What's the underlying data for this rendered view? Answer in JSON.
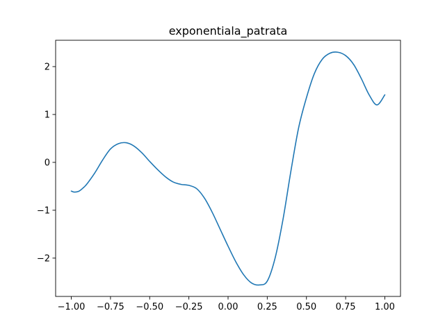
{
  "chart_data": {
    "type": "line",
    "title": "exponentiala_patrata",
    "xlabel": "",
    "ylabel": "",
    "xlim": [
      -1.1,
      1.1
    ],
    "ylim": [
      -2.8,
      2.55
    ],
    "xticks": [
      -1.0,
      -0.75,
      -0.5,
      -0.25,
      0.0,
      0.25,
      0.5,
      0.75,
      1.0
    ],
    "xtick_labels": [
      "−1.00",
      "−0.75",
      "−0.50",
      "−0.25",
      "0.00",
      "0.25",
      "0.50",
      "0.75",
      "1.00"
    ],
    "yticks": [
      -2,
      -1,
      0,
      1,
      2
    ],
    "ytick_labels": [
      "−2",
      "−1",
      "0",
      "1",
      "2"
    ],
    "grid": false,
    "legend": "none",
    "series": [
      {
        "color": "#1f77b4",
        "x": [
          -1.0,
          -0.98,
          -0.95,
          -0.92,
          -0.9,
          -0.85,
          -0.8,
          -0.75,
          -0.7,
          -0.65,
          -0.6,
          -0.55,
          -0.5,
          -0.45,
          -0.4,
          -0.35,
          -0.3,
          -0.25,
          -0.2,
          -0.15,
          -0.1,
          -0.05,
          0.0,
          0.05,
          0.1,
          0.15,
          0.2,
          0.25,
          0.3,
          0.35,
          0.4,
          0.45,
          0.5,
          0.55,
          0.6,
          0.65,
          0.7,
          0.75,
          0.8,
          0.85,
          0.9,
          0.95,
          1.0
        ],
        "y": [
          -0.6,
          -0.62,
          -0.6,
          -0.52,
          -0.45,
          -0.22,
          0.05,
          0.28,
          0.39,
          0.41,
          0.34,
          0.2,
          0.02,
          -0.15,
          -0.3,
          -0.41,
          -0.46,
          -0.48,
          -0.55,
          -0.75,
          -1.05,
          -1.4,
          -1.75,
          -2.08,
          -2.35,
          -2.52,
          -2.56,
          -2.48,
          -2.0,
          -1.2,
          -0.2,
          0.72,
          1.35,
          1.85,
          2.15,
          2.28,
          2.3,
          2.23,
          2.05,
          1.75,
          1.41,
          1.2,
          1.41
        ]
      }
    ]
  }
}
